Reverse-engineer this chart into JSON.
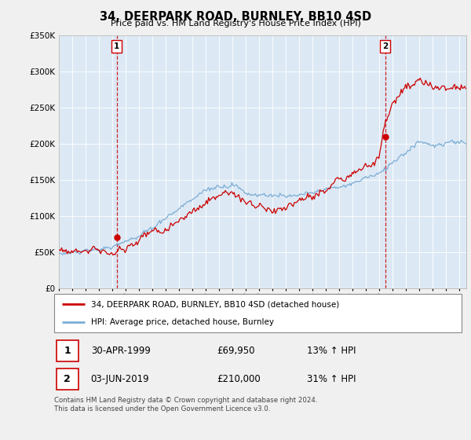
{
  "title": "34, DEERPARK ROAD, BURNLEY, BB10 4SD",
  "subtitle": "Price paid vs. HM Land Registry's House Price Index (HPI)",
  "ylim": [
    0,
    350000
  ],
  "yticks": [
    0,
    50000,
    100000,
    150000,
    200000,
    250000,
    300000,
    350000
  ],
  "hpi_color": "#7dadd4",
  "price_color": "#cc0000",
  "vline_color": "#cc0000",
  "plot_bg_color": "#dce9f5",
  "sale1_date_num": 1999.33,
  "sale1_price": 69950,
  "sale2_date_num": 2019.42,
  "sale2_price": 210000,
  "legend_property": "34, DEERPARK ROAD, BURNLEY, BB10 4SD (detached house)",
  "legend_hpi": "HPI: Average price, detached house, Burnley",
  "footnote": "Contains HM Land Registry data © Crown copyright and database right 2024.\nThis data is licensed under the Open Government Licence v3.0.",
  "background_color": "#f0f0f0"
}
